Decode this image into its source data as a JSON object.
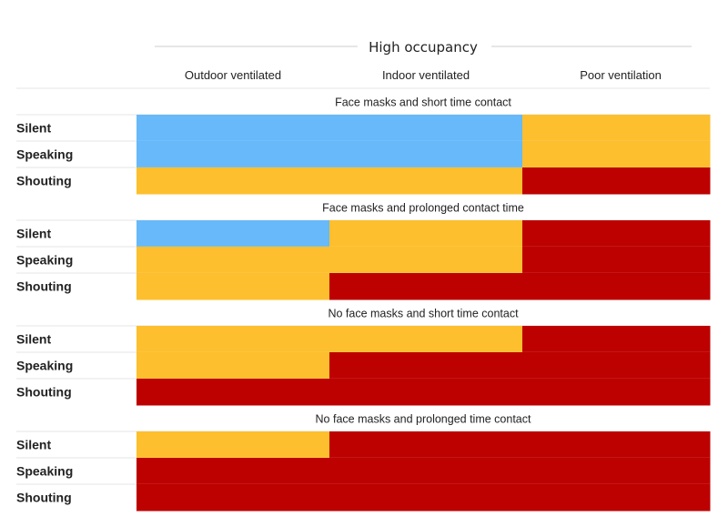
{
  "chart_data": {
    "type": "heatmap",
    "title": "High occupancy",
    "columns": [
      "Outdoor ventilated",
      "Indoor ventilated",
      "Poor ventilation"
    ],
    "rows": [
      "Silent",
      "Speaking",
      "Shouting"
    ],
    "risk_colors": {
      "low": "#67b9fa",
      "medium": "#fdbf2d",
      "high": "#bd0000"
    },
    "sections": [
      {
        "title": "Face masks and short time contact",
        "cells": [
          [
            "low",
            "low",
            "medium"
          ],
          [
            "low",
            "low",
            "medium"
          ],
          [
            "medium",
            "medium",
            "high"
          ]
        ]
      },
      {
        "title": "Face masks and prolonged contact time",
        "cells": [
          [
            "low",
            "medium",
            "high"
          ],
          [
            "medium",
            "medium",
            "high"
          ],
          [
            "medium",
            "high",
            "high"
          ]
        ]
      },
      {
        "title": "No face masks and short time contact",
        "cells": [
          [
            "medium",
            "medium",
            "high"
          ],
          [
            "medium",
            "high",
            "high"
          ],
          [
            "high",
            "high",
            "high"
          ]
        ]
      },
      {
        "title": "No face masks and prolonged time contact",
        "cells": [
          [
            "medium",
            "high",
            "high"
          ],
          [
            "high",
            "high",
            "high"
          ],
          [
            "high",
            "high",
            "high"
          ]
        ]
      }
    ]
  }
}
